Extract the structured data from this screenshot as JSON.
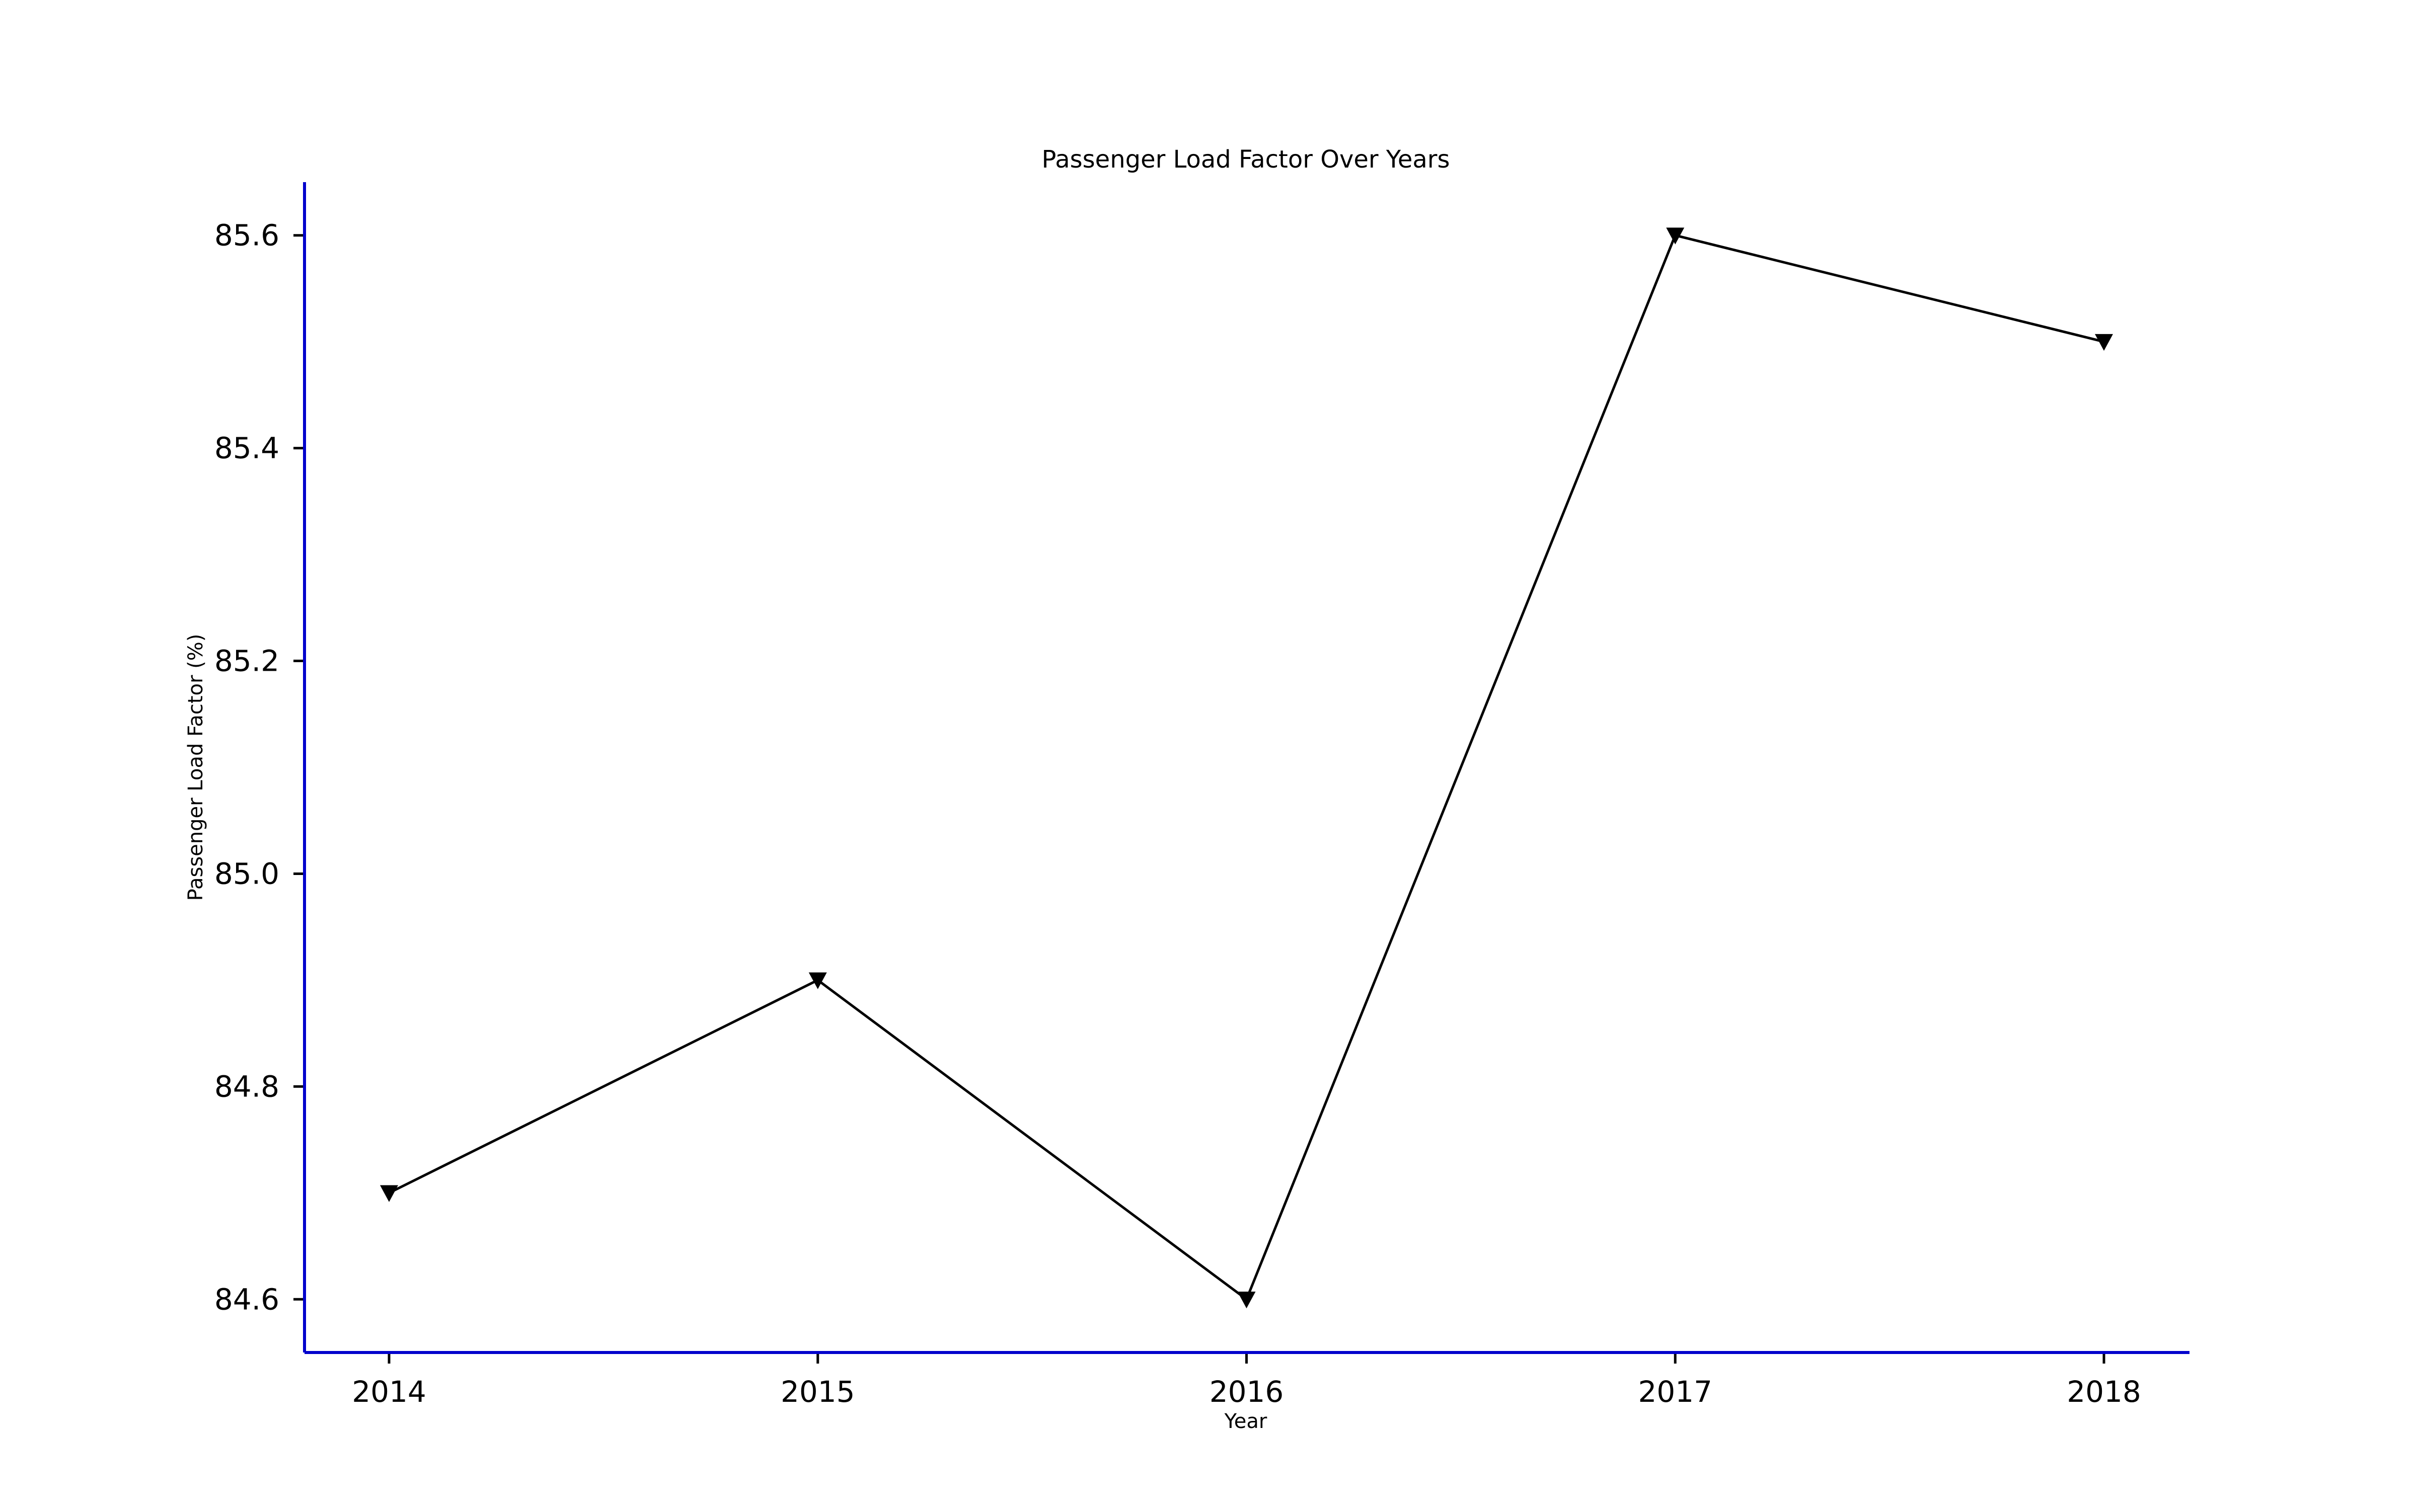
{
  "chart_data": {
    "type": "line",
    "title": "Passenger Load Factor Over Years",
    "xlabel": "Year",
    "ylabel": "Passenger Load Factor (%)",
    "x": [
      "2014",
      "2015",
      "2016",
      "2017",
      "2018"
    ],
    "series": [
      {
        "values": [
          84.7,
          84.9,
          84.6,
          85.6,
          85.5
        ]
      }
    ],
    "ylim": [
      84.55,
      85.65
    ],
    "y_ticks": [
      "84.6",
      "84.8",
      "85.0",
      "85.2",
      "85.4",
      "85.6"
    ],
    "marker": "triangle-down",
    "grid": false,
    "legend": "none",
    "colors": {
      "axis": "#0000cc",
      "line": "#000000",
      "marker": "#000000"
    }
  }
}
